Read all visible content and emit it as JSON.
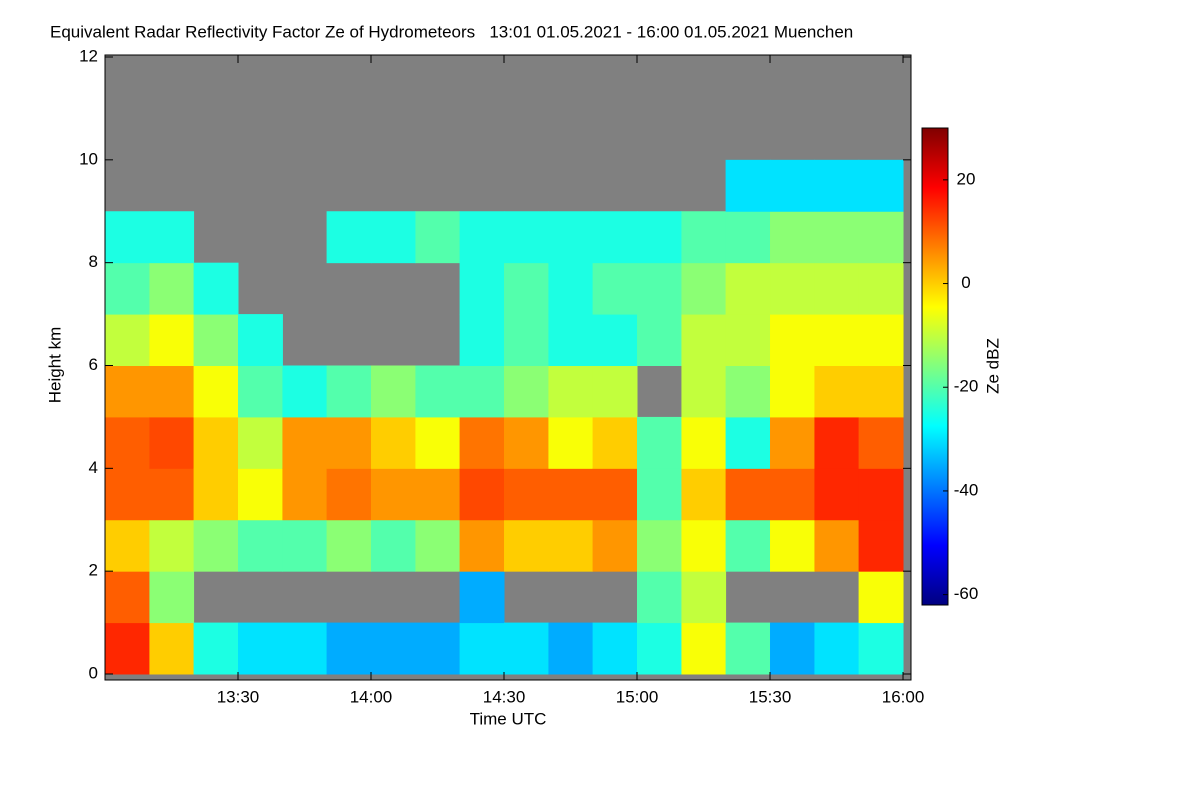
{
  "chart_data": {
    "type": "heatmap",
    "title": "Equivalent Radar Reflectivity Factor Ze of Hydrometeors   13:01 01.05.2021 - 16:00 01.05.2021 Muenchen",
    "xlabel": "Time UTC",
    "ylabel": "Height km",
    "colorbar_label": "Ze dBZ",
    "xlim": [
      13.0,
      16.03
    ],
    "ylim": [
      0,
      12
    ],
    "xticks": [
      {
        "value": 13.5,
        "label": "13:30"
      },
      {
        "value": 14.0,
        "label": "14:00"
      },
      {
        "value": 14.5,
        "label": "14:30"
      },
      {
        "value": 15.0,
        "label": "15:00"
      },
      {
        "value": 15.5,
        "label": "15:30"
      },
      {
        "value": 16.0,
        "label": "16:00"
      }
    ],
    "yticks": [
      0,
      2,
      4,
      6,
      8,
      10,
      12
    ],
    "clim": [
      -62,
      30
    ],
    "cticks": [
      20,
      0,
      -20,
      -40,
      -60
    ],
    "colormap": "jet",
    "missing_color": "#808080",
    "xbins": [
      13.0,
      13.167,
      13.333,
      13.5,
      13.667,
      13.833,
      14.0,
      14.167,
      14.333,
      14.5,
      14.667,
      14.833,
      15.0,
      15.167,
      15.333,
      15.5,
      15.667,
      15.833,
      16.0
    ],
    "ybins": [
      0,
      1,
      2,
      3,
      4,
      5,
      6,
      7,
      8,
      9,
      10,
      11,
      12
    ],
    "z": [
      [
        15,
        10,
        0,
        10,
        10,
        5,
        -10,
        -20,
        -25,
        null,
        null,
        null
      ],
      [
        0,
        -15,
        -10,
        10,
        12,
        5,
        -5,
        -15,
        -25,
        null,
        null,
        null
      ],
      [
        -25,
        null,
        -15,
        0,
        0,
        -5,
        -15,
        -25,
        null,
        null,
        null,
        null
      ],
      [
        -30,
        null,
        -20,
        -5,
        -10,
        -20,
        -25,
        null,
        null,
        null,
        null,
        null
      ],
      [
        -30,
        null,
        -20,
        5,
        5,
        -25,
        null,
        null,
        null,
        null,
        null,
        null
      ],
      [
        -35,
        null,
        -15,
        8,
        5,
        -20,
        null,
        null,
        -25,
        null,
        null,
        null
      ],
      [
        -35,
        null,
        -20,
        5,
        0,
        -15,
        null,
        null,
        -25,
        null,
        null,
        null
      ],
      [
        -35,
        null,
        -15,
        5,
        -5,
        -20,
        null,
        null,
        -20,
        null,
        null,
        null
      ],
      [
        -30,
        -35,
        5,
        12,
        8,
        -20,
        -25,
        -25,
        -25,
        null,
        null,
        null
      ],
      [
        -30,
        null,
        0,
        10,
        5,
        -15,
        -20,
        -20,
        -25,
        null,
        null,
        null
      ],
      [
        -35,
        null,
        0,
        10,
        -5,
        -10,
        -25,
        -25,
        -25,
        null,
        null,
        null
      ],
      [
        -30,
        null,
        5,
        10,
        0,
        -10,
        -25,
        -20,
        -25,
        null,
        null,
        null
      ],
      [
        -25,
        -20,
        -15,
        -20,
        -20,
        null,
        -20,
        -20,
        -25,
        null,
        null,
        null
      ],
      [
        -5,
        -10,
        -5,
        0,
        -5,
        -10,
        -10,
        -15,
        -20,
        null,
        null,
        null
      ],
      [
        -20,
        null,
        -20,
        10,
        -25,
        -15,
        -10,
        -10,
        -20,
        -30,
        null,
        null
      ],
      [
        -35,
        null,
        -5,
        10,
        5,
        -5,
        -5,
        -10,
        -15,
        -30,
        null,
        null
      ],
      [
        -30,
        null,
        5,
        15,
        15,
        0,
        -5,
        -10,
        -15,
        -30,
        null,
        null
      ],
      [
        -25,
        -5,
        15,
        15,
        10,
        0,
        -5,
        -10,
        -15,
        -30,
        null,
        null
      ]
    ]
  }
}
